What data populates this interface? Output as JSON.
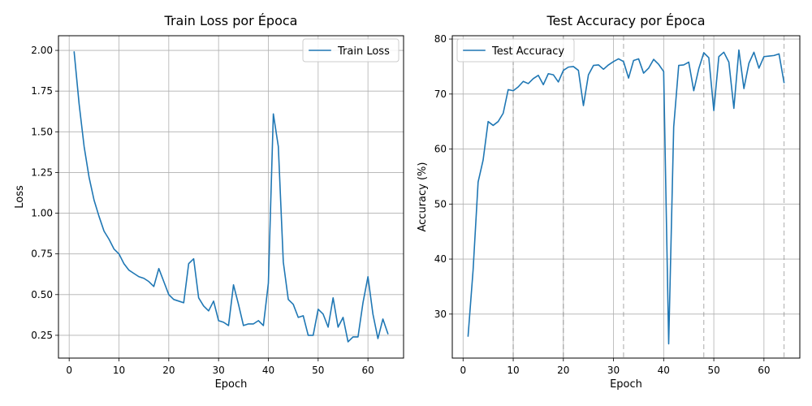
{
  "chart_data": [
    {
      "type": "line",
      "title": "Train Loss por Época",
      "xlabel": "Epoch",
      "ylabel": "Loss",
      "xlim": [
        -2.15,
        67.15
      ],
      "ylim": [
        0.11,
        2.09
      ],
      "xticks": [
        0,
        10,
        20,
        30,
        40,
        50,
        60
      ],
      "yticks": [
        0.25,
        0.5,
        0.75,
        1.0,
        1.25,
        1.5,
        1.75,
        2.0
      ],
      "ytick_labels": [
        "0.25",
        "0.50",
        "0.75",
        "1.00",
        "1.25",
        "1.50",
        "1.75",
        "2.00"
      ],
      "xtick_labels": [
        "0",
        "10",
        "20",
        "30",
        "40",
        "50",
        "60"
      ],
      "grid": true,
      "legend": "upper right",
      "series": [
        {
          "name": "Train Loss",
          "color": "#1f77b4",
          "x": [
            1,
            2,
            3,
            4,
            5,
            6,
            7,
            8,
            9,
            10,
            11,
            12,
            13,
            14,
            15,
            16,
            17,
            18,
            19,
            20,
            21,
            22,
            23,
            24,
            25,
            26,
            27,
            28,
            29,
            30,
            31,
            32,
            33,
            34,
            35,
            36,
            37,
            38,
            39,
            40,
            41,
            42,
            43,
            44,
            45,
            46,
            47,
            48,
            49,
            50,
            51,
            52,
            53,
            54,
            55,
            56,
            57,
            58,
            59,
            60,
            61,
            62,
            63,
            64
          ],
          "y": [
            1.99,
            1.67,
            1.41,
            1.22,
            1.08,
            0.98,
            0.89,
            0.84,
            0.78,
            0.75,
            0.69,
            0.65,
            0.63,
            0.61,
            0.6,
            0.58,
            0.55,
            0.66,
            0.58,
            0.5,
            0.47,
            0.46,
            0.45,
            0.69,
            0.72,
            0.48,
            0.43,
            0.4,
            0.46,
            0.34,
            0.33,
            0.31,
            0.56,
            0.44,
            0.31,
            0.32,
            0.32,
            0.34,
            0.31,
            0.57,
            1.61,
            1.41,
            0.7,
            0.47,
            0.44,
            0.36,
            0.37,
            0.25,
            0.25,
            0.41,
            0.38,
            0.3,
            0.48,
            0.3,
            0.36,
            0.21,
            0.24,
            0.24,
            0.45,
            0.61,
            0.38,
            0.23,
            0.35,
            0.26
          ]
        }
      ]
    },
    {
      "type": "line",
      "title": "Test Accuracy por Época",
      "xlabel": "Epoch",
      "ylabel": "Accuracy (%)",
      "xlim": [
        -2.15,
        67.15
      ],
      "ylim": [
        22.0,
        80.6
      ],
      "xticks": [
        0,
        10,
        20,
        30,
        40,
        50,
        60
      ],
      "yticks": [
        30,
        40,
        50,
        60,
        70,
        80
      ],
      "ytick_labels": [
        "30",
        "40",
        "50",
        "60",
        "70",
        "80"
      ],
      "xtick_labels": [
        "0",
        "10",
        "20",
        "30",
        "40",
        "50",
        "60"
      ],
      "grid": true,
      "legend": "upper left",
      "dashed_vlines": [
        10,
        20,
        32,
        48,
        64
      ],
      "series": [
        {
          "name": "Test Accuracy",
          "color": "#1f77b4",
          "x": [
            1,
            2,
            3,
            4,
            5,
            6,
            7,
            8,
            9,
            10,
            11,
            12,
            13,
            14,
            15,
            16,
            17,
            18,
            19,
            20,
            21,
            22,
            23,
            24,
            25,
            26,
            27,
            28,
            29,
            30,
            31,
            32,
            33,
            34,
            35,
            36,
            37,
            38,
            39,
            40,
            41,
            42,
            43,
            44,
            45,
            46,
            47,
            48,
            49,
            50,
            51,
            52,
            53,
            54,
            55,
            56,
            57,
            58,
            59,
            60,
            61,
            62,
            63,
            64
          ],
          "y": [
            26,
            38,
            54,
            58,
            65,
            64.3,
            65,
            66.5,
            70.8,
            70.6,
            71.3,
            72.3,
            71.9,
            72.8,
            73.4,
            71.7,
            73.7,
            73.5,
            72.2,
            74.3,
            74.9,
            75,
            74.3,
            67.9,
            73.5,
            75.2,
            75.3,
            74.5,
            75.3,
            75.9,
            76.4,
            75.9,
            72.9,
            76.1,
            76.4,
            73.8,
            74.7,
            76.3,
            75.4,
            74.1,
            24.6,
            64,
            75.2,
            75.3,
            75.8,
            70.6,
            74.6,
            77.5,
            76.6,
            67,
            76.8,
            77.6,
            75.8,
            67.4,
            78,
            71,
            75.6,
            77.6,
            74.7,
            76.8,
            76.9,
            77,
            77.3,
            72.1
          ]
        }
      ]
    }
  ]
}
